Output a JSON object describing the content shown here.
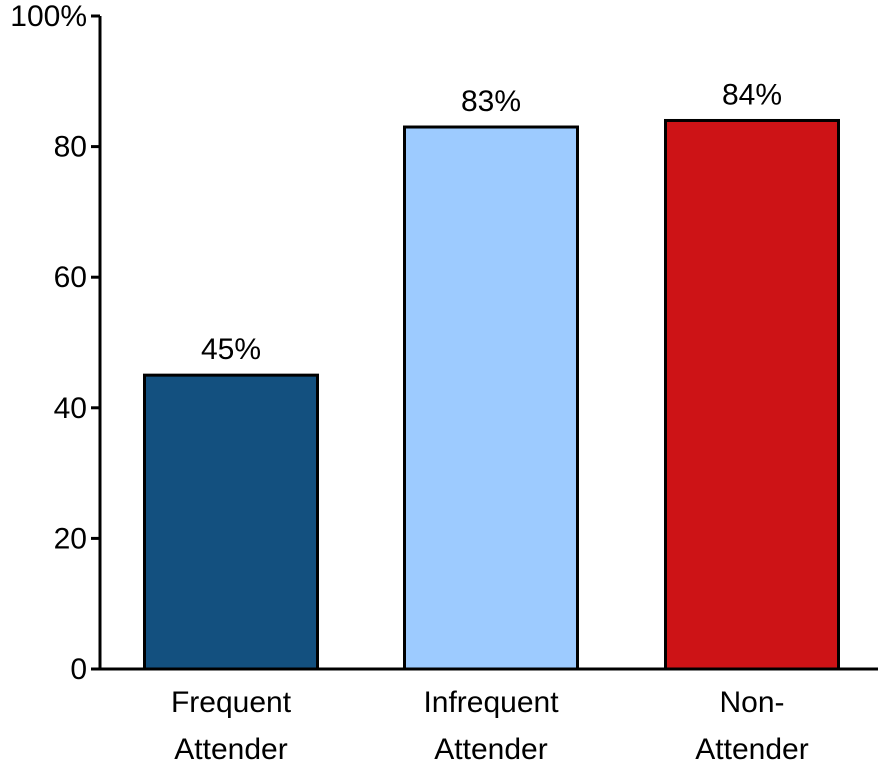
{
  "chart_data": {
    "type": "bar",
    "categories": [
      [
        "Frequent",
        "Attender"
      ],
      [
        "Infrequent",
        "Attender"
      ],
      [
        "Non-",
        "Attender"
      ]
    ],
    "values": [
      45,
      83,
      84
    ],
    "data_labels": [
      "45%",
      "83%",
      "84%"
    ],
    "bar_colors": [
      "#13507f",
      "#9dcbff",
      "#cd1316"
    ],
    "ylim": [
      0,
      100
    ],
    "yticks": [
      0,
      20,
      40,
      60,
      80,
      100
    ],
    "ytick_labels": [
      "0",
      "20",
      "40",
      "60",
      "80",
      "100%"
    ],
    "grid": false,
    "legend": "none"
  }
}
